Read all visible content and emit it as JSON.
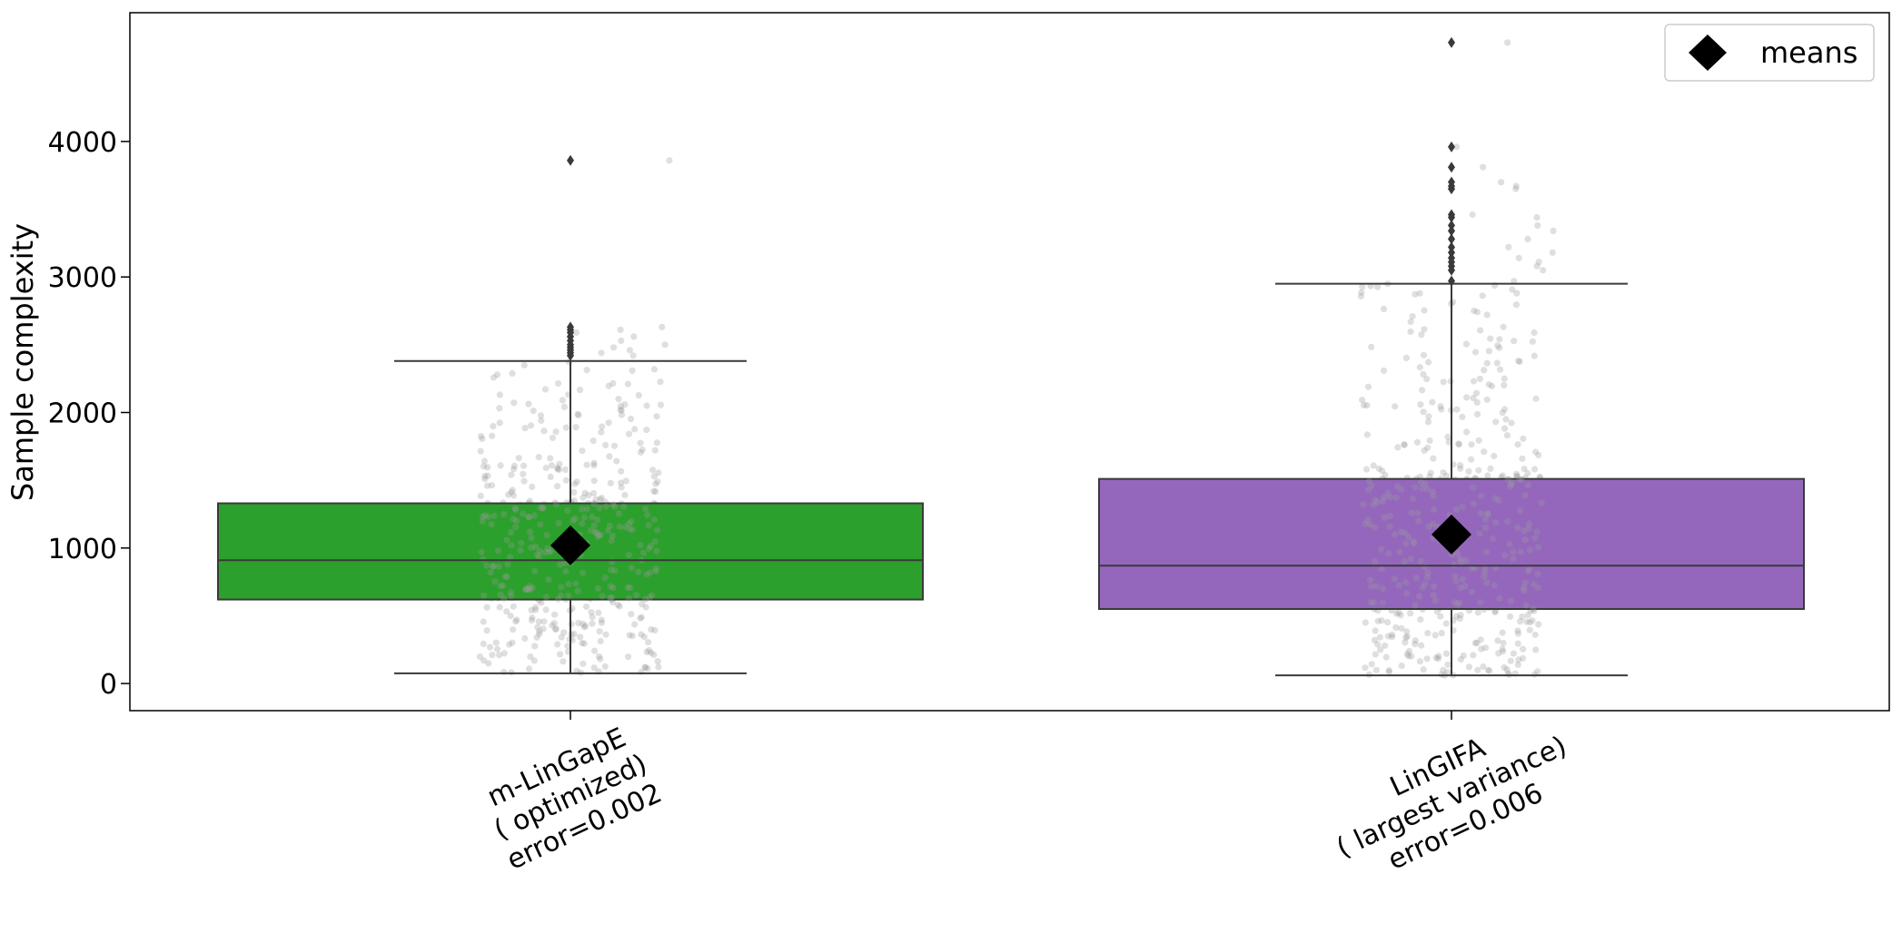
{
  "chart_data": {
    "type": "box",
    "ylabel": "Sample complexity",
    "ylim": [
      -200,
      4950
    ],
    "yticks": [
      0,
      1000,
      2000,
      3000,
      4000
    ],
    "legend": {
      "label": "means",
      "placement": "top-right"
    },
    "grid": false,
    "boxes": [
      {
        "label_lines": [
          "m-LinGapE",
          "( optimized)",
          "error=0.002"
        ],
        "color": "#2ca02c",
        "q1": 620,
        "median": 910,
        "q3": 1330,
        "whisker_low": 75,
        "whisker_high": 2380,
        "mean": 1020,
        "outliers": [
          2420,
          2440,
          2460,
          2480,
          2500,
          2530,
          2560,
          2590,
          2610,
          2630,
          3860
        ]
      },
      {
        "label_lines": [
          "LinGIFA",
          "( largest variance)",
          "error=0.006"
        ],
        "color": "#9467bd",
        "q1": 550,
        "median": 870,
        "q3": 1510,
        "whisker_low": 60,
        "whisker_high": 2950,
        "mean": 1100,
        "outliers": [
          2970,
          3050,
          3080,
          3110,
          3140,
          3180,
          3220,
          3280,
          3340,
          3380,
          3440,
          3460,
          3650,
          3670,
          3700,
          3810,
          3960,
          4730
        ]
      }
    ]
  }
}
